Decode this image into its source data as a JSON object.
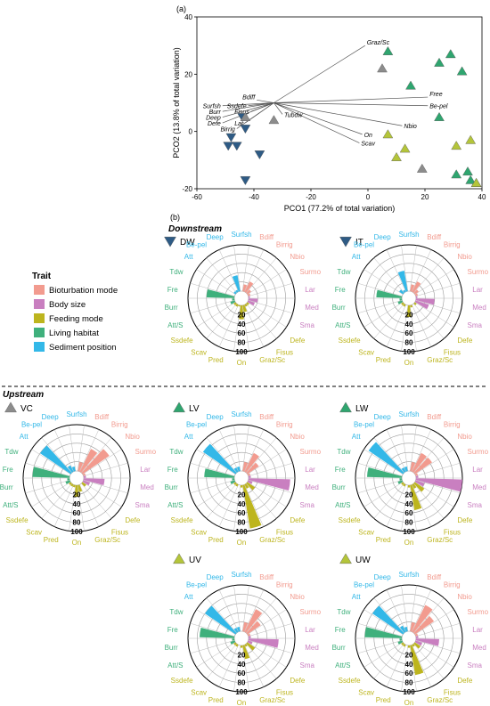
{
  "panel_a_label": "(a)",
  "panel_b_label": "(b)",
  "downstream_label": "Downstream",
  "upstream_label": "Upstream",
  "colors": {
    "gray": "#8c8c8c",
    "navy": "#2e5b85",
    "green": "#2fa56f",
    "lime": "#b4c53a",
    "Bioturbation mode": "#f29b8f",
    "Body size": "#c97fc0",
    "Feeding mode": "#bdb51e",
    "Living habitat": "#3fb07c",
    "Sediment position": "#33b8e8"
  },
  "legend": {
    "title": "Trait",
    "items": [
      "Bioturbation mode",
      "Body size",
      "Feeding mode",
      "Living habitat",
      "Sediment position"
    ]
  },
  "chart_data": [
    {
      "type": "scatter",
      "xlabel": "PCO1 (77.2% of total variation)",
      "ylabel": "PCO2 (13.8% of total variation)",
      "xlim": [
        -60,
        40
      ],
      "ylim": [
        -20,
        40
      ],
      "xticks": [
        -60,
        -40,
        -20,
        0,
        20,
        40
      ],
      "yticks": [
        -20,
        0,
        20,
        40
      ],
      "series": [
        {
          "marker": "triangle-down",
          "color": "navy",
          "points": [
            [
              -44,
              5
            ],
            [
              -43,
              1
            ],
            [
              -48,
              -2
            ],
            [
              -46,
              -5
            ],
            [
              -49,
              -5
            ],
            [
              -38,
              -8
            ],
            [
              -43,
              -17
            ]
          ]
        },
        {
          "marker": "triangle-up",
          "color": "gray",
          "points": [
            [
              -43,
              5
            ],
            [
              -33,
              4
            ],
            [
              5,
              22
            ],
            [
              19,
              -13
            ]
          ]
        },
        {
          "marker": "triangle-up",
          "color": "green",
          "points": [
            [
              7,
              28
            ],
            [
              29,
              27
            ],
            [
              25,
              24
            ],
            [
              33,
              21
            ],
            [
              15,
              16
            ],
            [
              25,
              5
            ],
            [
              31,
              -15
            ],
            [
              35,
              -14
            ],
            [
              36,
              -17
            ],
            [
              38,
              -18
            ]
          ]
        },
        {
          "marker": "triangle-up",
          "color": "lime",
          "points": [
            [
              7,
              -1
            ],
            [
              13,
              -6
            ],
            [
              36,
              -3
            ],
            [
              31,
              -5
            ],
            [
              10,
              -9
            ],
            [
              38,
              -18
            ]
          ]
        }
      ],
      "vectors": [
        {
          "label": "Graz/Sc",
          "x": -1,
          "y": 30
        },
        {
          "label": "Free",
          "x": 21,
          "y": 12
        },
        {
          "label": "Be-pel",
          "x": 21,
          "y": 9
        },
        {
          "label": "Nbio",
          "x": 12,
          "y": 2
        },
        {
          "label": "On",
          "x": -2,
          "y": -1
        },
        {
          "label": "Scav",
          "x": -3,
          "y": -4
        },
        {
          "label": "Tubdw",
          "x": -30,
          "y": 6
        },
        {
          "label": "Bdiff",
          "x": -39,
          "y": 11
        },
        {
          "label": "Surfsh",
          "x": -51,
          "y": 9
        },
        {
          "label": "Ssdefe",
          "x": -42,
          "y": 9
        },
        {
          "label": "Fisus",
          "x": -41,
          "y": 7
        },
        {
          "label": "Burr",
          "x": -51,
          "y": 7
        },
        {
          "label": "Deep",
          "x": -51,
          "y": 5
        },
        {
          "label": "Defe",
          "x": -51,
          "y": 3
        },
        {
          "label": "Lar",
          "x": -43,
          "y": 3
        },
        {
          "label": "Birrig",
          "x": -46,
          "y": 1
        }
      ]
    },
    {
      "type": "polar-bar",
      "categories": [
        "Surfsh",
        "Bdiff",
        "Birrig",
        "Nbio",
        "Surmo",
        "Lar",
        "Med",
        "Sma",
        "Defe",
        "Fisus",
        "Graz/Sc",
        "On",
        "Pred",
        "Scav",
        "Ssdefe",
        "Att/S",
        "Burr",
        "Fre",
        "Tdw",
        "Att",
        "Be-pel",
        "Deep"
      ],
      "category_groups": [
        "Sediment position",
        "Bioturbation mode",
        "Bioturbation mode",
        "Bioturbation mode",
        "Bioturbation mode",
        "Body size",
        "Body size",
        "Body size",
        "Feeding mode",
        "Feeding mode",
        "Feeding mode",
        "Feeding mode",
        "Feeding mode",
        "Feeding mode",
        "Feeding mode",
        "Living habitat",
        "Living habitat",
        "Living habitat",
        "Living habitat",
        "Sediment position",
        "Sediment position",
        "Sediment position"
      ],
      "radial_ticks": [
        20,
        40,
        60,
        80,
        100
      ],
      "rlim": [
        0,
        100
      ],
      "panels": [
        {
          "name": "DW",
          "marker": "triangle-down",
          "color": "navy",
          "values": [
            0,
            15,
            25,
            10,
            5,
            3,
            20,
            15,
            5,
            5,
            15,
            30,
            3,
            5,
            5,
            10,
            5,
            60,
            0,
            5,
            5,
            35
          ]
        },
        {
          "name": "IT",
          "marker": "triangle-down",
          "color": "navy",
          "values": [
            0,
            15,
            25,
            10,
            5,
            3,
            40,
            30,
            5,
            0,
            5,
            25,
            0,
            5,
            5,
            10,
            5,
            55,
            0,
            10,
            5,
            45
          ]
        },
        {
          "name": "VC",
          "marker": "triangle-up",
          "color": "gray",
          "values": [
            0,
            20,
            55,
            70,
            5,
            5,
            45,
            15,
            10,
            0,
            15,
            25,
            5,
            5,
            5,
            10,
            5,
            80,
            0,
            80,
            15,
            10
          ]
        },
        {
          "name": "LV",
          "marker": "triangle-up",
          "color": "green",
          "values": [
            0,
            20,
            45,
            30,
            5,
            5,
            90,
            10,
            20,
            10,
            95,
            5,
            0,
            5,
            5,
            10,
            5,
            65,
            0,
            85,
            10,
            10
          ]
        },
        {
          "name": "LW",
          "marker": "triangle-up",
          "color": "green",
          "values": [
            0,
            20,
            45,
            45,
            5,
            5,
            100,
            20,
            25,
            10,
            55,
            5,
            0,
            5,
            5,
            10,
            5,
            75,
            0,
            90,
            10,
            10
          ]
        },
        {
          "name": "UV",
          "marker": "triangle-up",
          "color": "lime",
          "values": [
            0,
            20,
            55,
            35,
            5,
            5,
            65,
            10,
            20,
            5,
            30,
            5,
            0,
            5,
            5,
            10,
            5,
            75,
            0,
            80,
            10,
            10
          ]
        },
        {
          "name": "UW",
          "marker": "triangle-up",
          "color": "lime",
          "values": [
            0,
            20,
            65,
            50,
            5,
            5,
            50,
            15,
            15,
            5,
            65,
            5,
            0,
            5,
            5,
            10,
            5,
            80,
            0,
            80,
            15,
            10
          ]
        }
      ]
    }
  ]
}
